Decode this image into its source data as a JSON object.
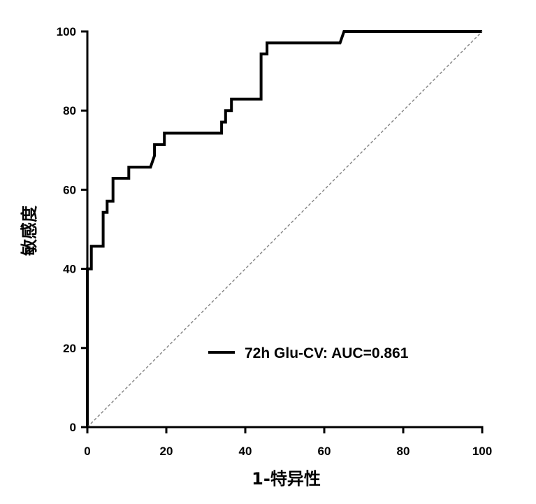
{
  "chart_data": {
    "type": "line",
    "xlabel": "1-特异性",
    "ylabel": "敏感度",
    "xlim": [
      0,
      100
    ],
    "ylim": [
      0,
      100
    ],
    "xticks": [
      0,
      20,
      40,
      60,
      80,
      100
    ],
    "yticks": [
      0,
      20,
      40,
      60,
      80,
      100
    ],
    "grid": false,
    "legend_position": "bottom-right",
    "series": [
      {
        "name": "72h Glu-CV: AUC=0.861",
        "style": "solid",
        "color": "#000000",
        "points": [
          [
            0,
            0
          ],
          [
            0,
            40
          ],
          [
            1,
            40
          ],
          [
            1,
            45.7
          ],
          [
            4,
            45.7
          ],
          [
            4,
            54.3
          ],
          [
            5,
            54.3
          ],
          [
            5,
            57.1
          ],
          [
            6.5,
            57.1
          ],
          [
            6.5,
            62.9
          ],
          [
            10.5,
            62.9
          ],
          [
            10.5,
            65.7
          ],
          [
            16,
            65.7
          ],
          [
            17,
            68.6
          ],
          [
            17,
            71.4
          ],
          [
            19.5,
            71.4
          ],
          [
            19.5,
            74.3
          ],
          [
            34,
            74.3
          ],
          [
            34,
            77.1
          ],
          [
            35,
            77.1
          ],
          [
            35,
            80
          ],
          [
            36.5,
            80
          ],
          [
            36.5,
            82.9
          ],
          [
            44,
            82.9
          ],
          [
            44,
            94.3
          ],
          [
            45.5,
            94.3
          ],
          [
            45.5,
            97.1
          ],
          [
            64,
            97.1
          ],
          [
            65,
            100
          ],
          [
            100,
            100
          ]
        ]
      },
      {
        "name": "",
        "style": "dashed",
        "color": "#888888",
        "points": [
          [
            0,
            0
          ],
          [
            100,
            100
          ]
        ]
      }
    ]
  }
}
